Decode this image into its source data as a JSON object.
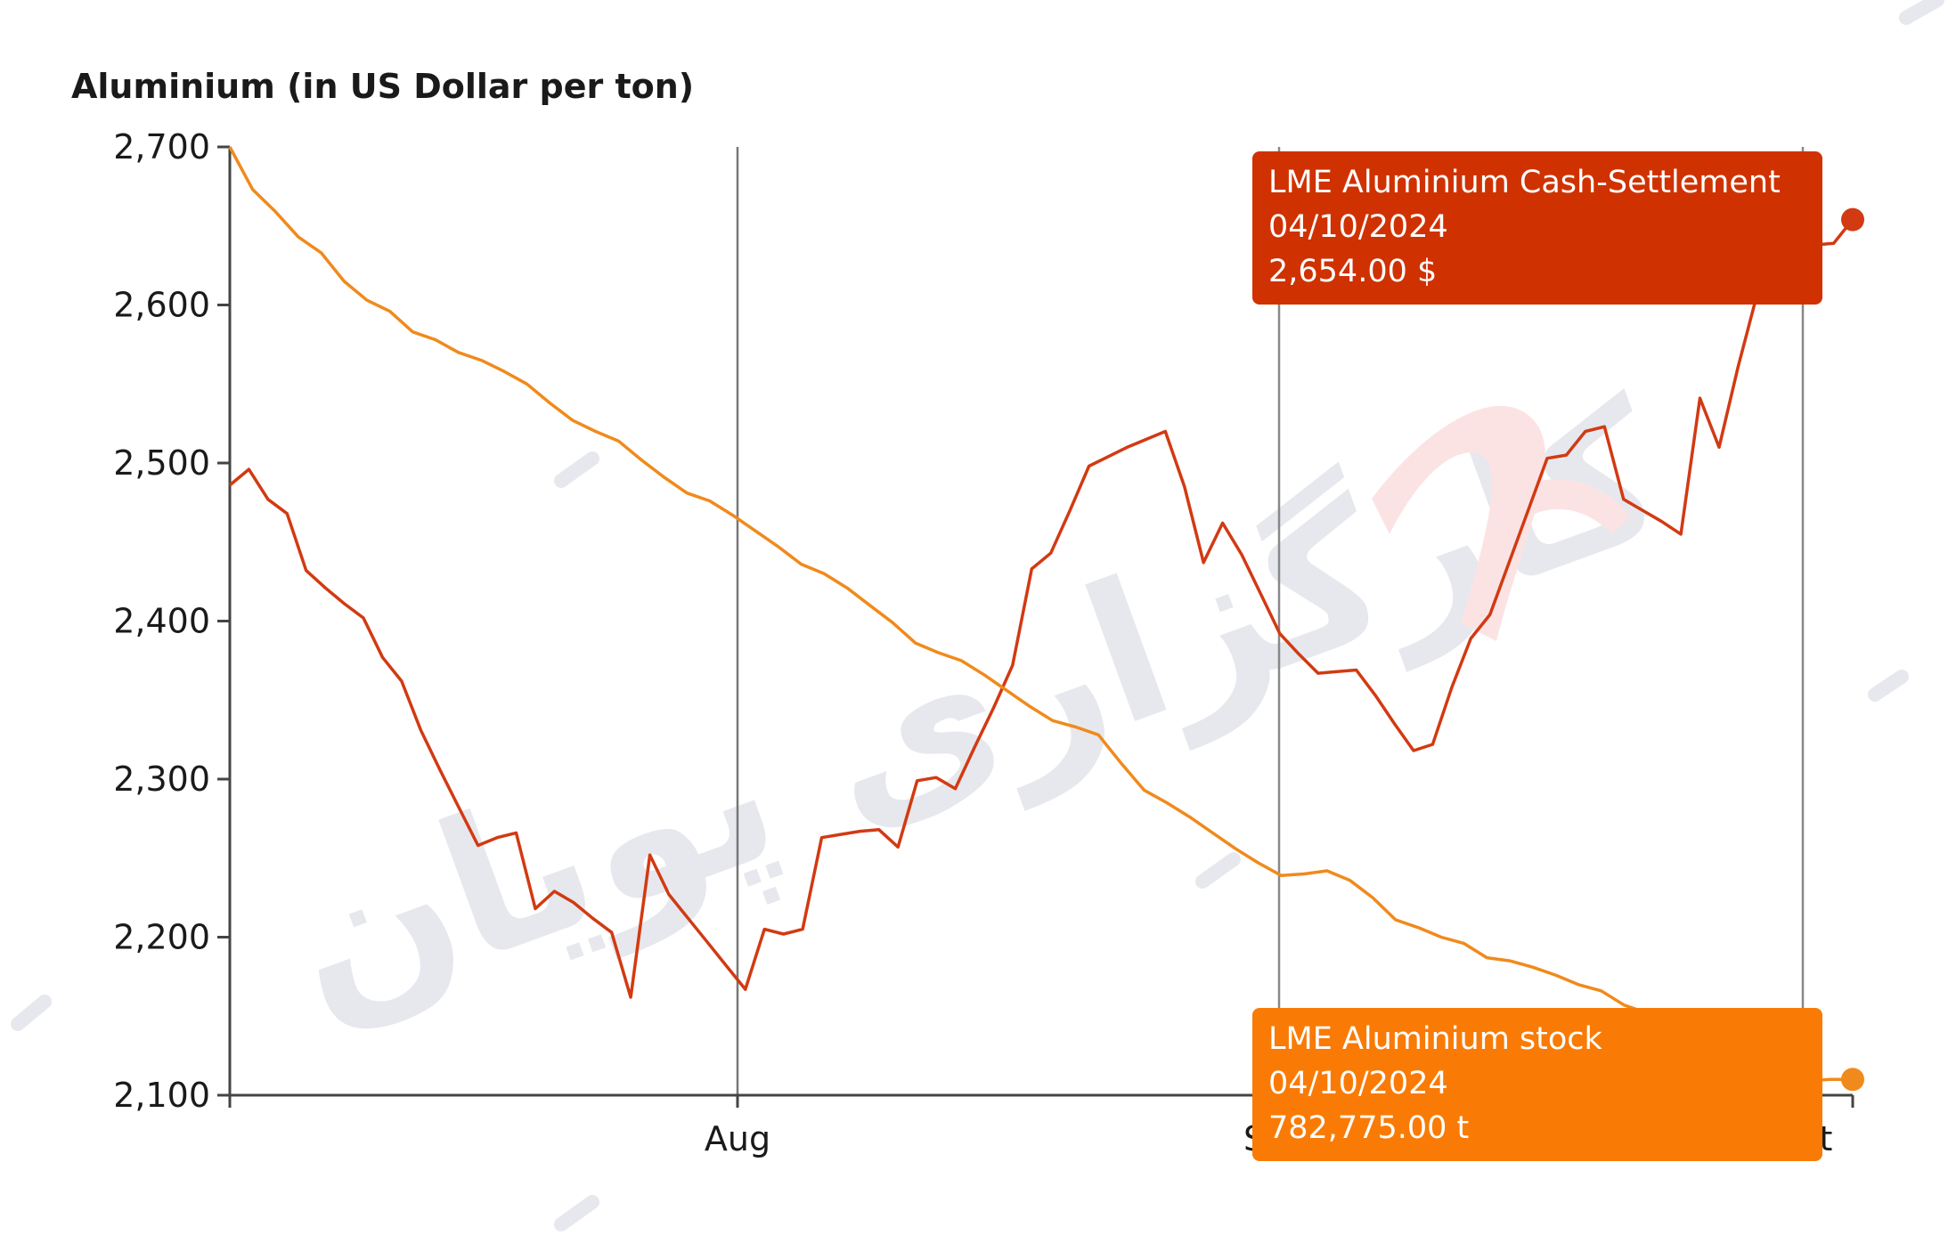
{
  "chart_data": {
    "type": "line",
    "title": "Aluminium (in US Dollar per ton)",
    "ylim": [
      2100,
      2700
    ],
    "y_ticks": [
      "2,700",
      "2,600",
      "2,500",
      "2,400",
      "2,300",
      "2,200",
      "2,100"
    ],
    "y_tick_values": [
      2700,
      2600,
      2500,
      2400,
      2300,
      2200,
      2100
    ],
    "x_ticks": [
      "Aug",
      "S",
      "t"
    ],
    "grid": "vertical lines at month boundaries",
    "series": [
      {
        "name": "LME Aluminium Cash-Settlement",
        "color": "#d23a12",
        "values": [
          2486,
          2496,
          2477,
          2468,
          2432,
          2421,
          2411,
          2402,
          2377,
          2362,
          2331,
          2306,
          2282,
          2258,
          2263,
          2266,
          2218,
          2229,
          2222,
          2212,
          2203,
          2162,
          2252,
          2227,
          2212,
          2197,
          2182,
          2167,
          2205,
          2202,
          2205,
          2263,
          2265,
          2267,
          2268,
          2257,
          2299,
          2301,
          2294,
          2320,
          2345,
          2372,
          2433,
          2443,
          2470,
          2498,
          2504,
          2510,
          2515,
          2520,
          2485,
          2437,
          2462,
          2442,
          2417,
          2392,
          2379,
          2367,
          2368,
          2369,
          2353,
          2335,
          2318,
          2322,
          2358,
          2389,
          2404,
          2437,
          2470,
          2503,
          2505,
          2520,
          2523,
          2477,
          2470,
          2463,
          2455,
          2541,
          2510,
          2561,
          2607,
          2625,
          2632,
          2638,
          2639,
          2654
        ]
      },
      {
        "name": "LME Aluminium stock",
        "color": "#f08a1c",
        "values": [
          2700,
          2673,
          2659,
          2643,
          2633,
          2615,
          2603,
          2596,
          2583,
          2578,
          2570,
          2565,
          2558,
          2550,
          2538,
          2527,
          2520,
          2514,
          2502,
          2491,
          2481,
          2476,
          2467,
          2457,
          2447,
          2436,
          2430,
          2421,
          2410,
          2399,
          2386,
          2380,
          2375,
          2366,
          2356,
          2346,
          2337,
          2333,
          2328,
          2310,
          2293,
          2285,
          2276,
          2266,
          2256,
          2247,
          2239,
          2240,
          2242,
          2236,
          2225,
          2211,
          2206,
          2200,
          2196,
          2187,
          2185,
          2181,
          2176,
          2170,
          2166,
          2157,
          2152,
          2141,
          2133,
          2127,
          2120,
          2115,
          2111,
          2109,
          2110,
          2110
        ]
      }
    ],
    "tooltips": [
      {
        "series": "LME Aluminium Cash-Settlement",
        "date": "04/10/2024",
        "value": "2,654.00 $",
        "color": "#cf3200"
      },
      {
        "series": "LME Aluminium stock",
        "date": "04/10/2024",
        "value": "782,775.00 t",
        "color": "#f97b05"
      }
    ]
  },
  "watermark": {
    "text": "کارگزاری پویان",
    "color": "#e6e8ee",
    "accent": "#fbe3e4"
  }
}
